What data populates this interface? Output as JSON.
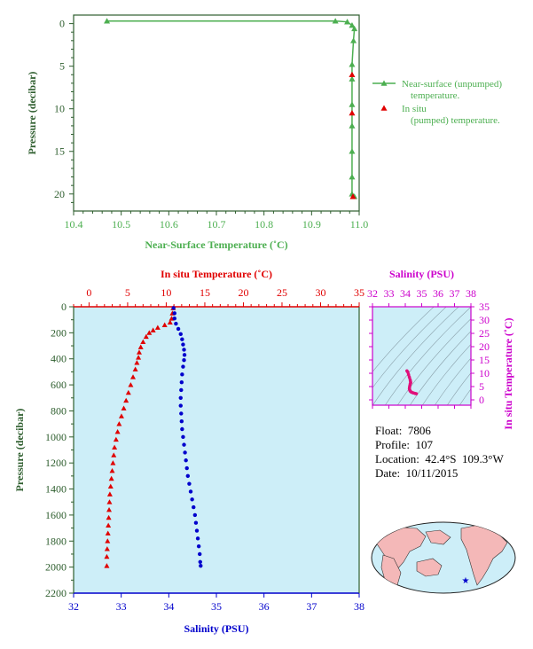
{
  "colors": {
    "green": "#4caf50",
    "axis_green": "#2e5e2e",
    "red": "#e00000",
    "blue": "#0000cc",
    "magenta": "#cc00cc",
    "panel_bg": "#cdeef8",
    "land": "#f4b8b8"
  },
  "info": {
    "float_label": "Float:",
    "float_value": "7806",
    "profile_label": "Profile:",
    "profile_value": "107",
    "location_label": "Location:",
    "location_value": "42.4°S  109.3°W",
    "date_label": "Date:",
    "date_value": "10/11/2015"
  },
  "chart_data": [
    {
      "type": "line",
      "id": "near-surface",
      "xlabel": "Near-Surface Temperature (˚C)",
      "ylabel": "Pressure (decibar)",
      "xlim": [
        10.4,
        11.0
      ],
      "ylim": [
        22,
        -1
      ],
      "xticks": [
        "10.4",
        "10.5",
        "10.6",
        "10.7",
        "10.8",
        "10.9",
        "11.0"
      ],
      "yticks": [
        "0",
        "5",
        "10",
        "15",
        "20"
      ],
      "legend_position": "right",
      "series": [
        {
          "name": "Near-surface (unpumped) temperature.",
          "marker": "triangle",
          "points": [
            [
              10.47,
              -0.3
            ],
            [
              10.95,
              -0.3
            ],
            [
              10.975,
              -0.2
            ],
            [
              10.985,
              0.2
            ],
            [
              10.99,
              0.6
            ],
            [
              10.988,
              2.0
            ],
            [
              10.985,
              4.8
            ],
            [
              10.985,
              6.5
            ],
            [
              10.985,
              9.5
            ],
            [
              10.985,
              12
            ],
            [
              10.985,
              15
            ],
            [
              10.985,
              18
            ],
            [
              10.985,
              20.0
            ],
            [
              10.99,
              20.3
            ]
          ]
        },
        {
          "name": "In situ (pumped) temperature.",
          "marker": "triangle",
          "points": [
            [
              10.985,
              6.0
            ],
            [
              10.985,
              10.5
            ],
            [
              10.987,
              20.3
            ]
          ]
        }
      ]
    },
    {
      "type": "line",
      "id": "profile",
      "ylabel": "Pressure (decibar)",
      "ylim": [
        2200,
        0
      ],
      "yticks": [
        "0",
        "200",
        "400",
        "600",
        "800",
        "1000",
        "1200",
        "1400",
        "1600",
        "1800",
        "2000",
        "2200"
      ],
      "temperature_axis": {
        "label": "In situ Temperature (˚C)",
        "lim": [
          -2,
          35
        ],
        "ticks": [
          "0",
          "5",
          "10",
          "15",
          "20",
          "25",
          "30",
          "35"
        ]
      },
      "salinity_axis": {
        "label": "Salinity (PSU)",
        "lim": [
          32,
          38
        ],
        "ticks": [
          "32",
          "33",
          "34",
          "35",
          "36",
          "37",
          "38"
        ]
      },
      "series": [
        {
          "name": "Temperature",
          "variable": "temperature",
          "marker": "triangle",
          "points": [
            [
              10.9,
              10
            ],
            [
              10.8,
              50
            ],
            [
              10.7,
              90
            ],
            [
              10.5,
              120
            ],
            [
              9.8,
              140
            ],
            [
              8.9,
              160
            ],
            [
              8.3,
              180
            ],
            [
              7.8,
              200
            ],
            [
              7.4,
              230
            ],
            [
              7.0,
              270
            ],
            [
              6.7,
              310
            ],
            [
              6.5,
              350
            ],
            [
              6.4,
              390
            ],
            [
              6.2,
              430
            ],
            [
              6.0,
              480
            ],
            [
              5.7,
              540
            ],
            [
              5.4,
              600
            ],
            [
              5.1,
              660
            ],
            [
              4.8,
              720
            ],
            [
              4.5,
              780
            ],
            [
              4.2,
              840
            ],
            [
              3.9,
              900
            ],
            [
              3.7,
              960
            ],
            [
              3.5,
              1020
            ],
            [
              3.3,
              1080
            ],
            [
              3.2,
              1140
            ],
            [
              3.1,
              1200
            ],
            [
              3.0,
              1260
            ],
            [
              2.9,
              1320
            ],
            [
              2.8,
              1380
            ],
            [
              2.7,
              1440
            ],
            [
              2.65,
              1500
            ],
            [
              2.6,
              1560
            ],
            [
              2.55,
              1620
            ],
            [
              2.5,
              1680
            ],
            [
              2.45,
              1740
            ],
            [
              2.4,
              1800
            ],
            [
              2.35,
              1860
            ],
            [
              2.3,
              1920
            ],
            [
              2.3,
              1990
            ]
          ]
        },
        {
          "name": "Salinity",
          "variable": "salinity",
          "marker": "circle",
          "points": [
            [
              34.1,
              10
            ],
            [
              34.12,
              50
            ],
            [
              34.12,
              90
            ],
            [
              34.15,
              130
            ],
            [
              34.2,
              170
            ],
            [
              34.25,
              210
            ],
            [
              34.28,
              250
            ],
            [
              34.3,
              290
            ],
            [
              34.32,
              330
            ],
            [
              34.33,
              370
            ],
            [
              34.32,
              410
            ],
            [
              34.3,
              460
            ],
            [
              34.28,
              520
            ],
            [
              34.27,
              580
            ],
            [
              34.26,
              640
            ],
            [
              34.25,
              700
            ],
            [
              34.25,
              760
            ],
            [
              34.26,
              820
            ],
            [
              34.27,
              880
            ],
            [
              34.28,
              940
            ],
            [
              34.3,
              1000
            ],
            [
              34.32,
              1060
            ],
            [
              34.34,
              1120
            ],
            [
              34.36,
              1180
            ],
            [
              34.38,
              1240
            ],
            [
              34.4,
              1300
            ],
            [
              34.43,
              1360
            ],
            [
              34.46,
              1420
            ],
            [
              34.49,
              1480
            ],
            [
              34.52,
              1540
            ],
            [
              34.55,
              1600
            ],
            [
              34.57,
              1660
            ],
            [
              34.59,
              1720
            ],
            [
              34.61,
              1780
            ],
            [
              34.63,
              1840
            ],
            [
              34.65,
              1900
            ],
            [
              34.66,
              1960
            ],
            [
              34.67,
              1990
            ]
          ]
        }
      ]
    },
    {
      "type": "scatter",
      "id": "ts-diagram",
      "xlabel": "Salinity (PSU)",
      "ylabel": "In situ Temperature (˚C)",
      "xlim": [
        32,
        38
      ],
      "ylim": [
        -2,
        35
      ],
      "xticks": [
        "32",
        "33",
        "34",
        "35",
        "36",
        "37",
        "38"
      ],
      "yticks": [
        "0",
        "5",
        "10",
        "15",
        "20",
        "25",
        "30",
        "35"
      ],
      "points": [
        [
          34.1,
          10.9
        ],
        [
          34.15,
          10.5
        ],
        [
          34.2,
          9.5
        ],
        [
          34.25,
          8.5
        ],
        [
          34.3,
          7.5
        ],
        [
          34.32,
          6.8
        ],
        [
          34.33,
          6.4
        ],
        [
          34.3,
          6.0
        ],
        [
          34.28,
          5.4
        ],
        [
          34.26,
          4.8
        ],
        [
          34.25,
          4.2
        ],
        [
          34.27,
          3.7
        ],
        [
          34.3,
          3.3
        ],
        [
          34.35,
          3.0
        ],
        [
          34.4,
          2.8
        ],
        [
          34.5,
          2.6
        ],
        [
          34.6,
          2.4
        ],
        [
          34.67,
          2.3
        ]
      ]
    }
  ]
}
